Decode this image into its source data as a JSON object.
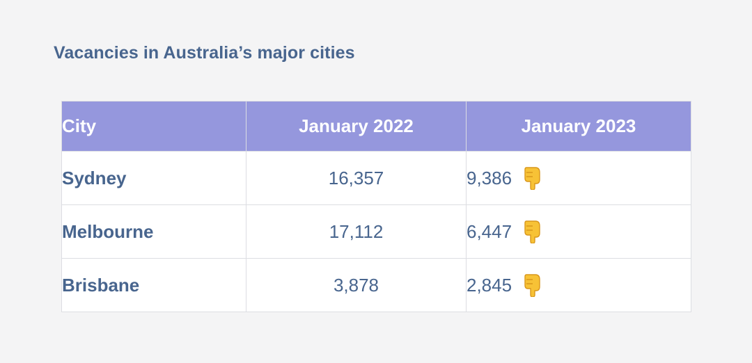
{
  "title": "Vacancies in Australia’s major cities",
  "table": {
    "headers": [
      "City",
      "January 2022",
      "January 2023"
    ],
    "rows": [
      {
        "city": "Sydney",
        "jan2022": "16,357",
        "jan2023": "9,386",
        "icon": "pointing-down-hand-icon"
      },
      {
        "city": "Melbourne",
        "jan2022": "17,112",
        "jan2023": "6,447",
        "icon": "pointing-down-hand-icon"
      },
      {
        "city": "Brisbane",
        "jan2022": "3,878",
        "jan2023": "2,845",
        "icon": "pointing-down-hand-icon"
      }
    ]
  },
  "colors": {
    "background": "#f4f4f5",
    "text": "#48658e",
    "header_bg": "#9597dd",
    "header_text": "#ffffff",
    "border": "#dcdde2",
    "icon": "#f7c236"
  }
}
